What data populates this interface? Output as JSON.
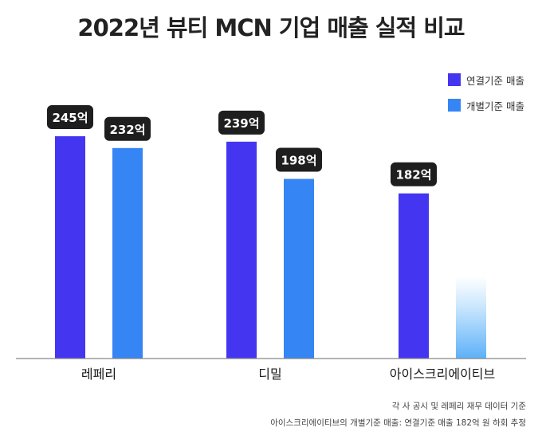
{
  "chart_data": {
    "type": "bar",
    "title": "2022년 뷰티 MCN 기업 매출 실적 비교",
    "categories": [
      "레페리",
      "디밀",
      "아이스크리에이티브"
    ],
    "series": [
      {
        "name": "연결기준 매출",
        "color": "#4436f0",
        "values": [
          245,
          239,
          182
        ],
        "labels": [
          "245억",
          "239억",
          "182억"
        ]
      },
      {
        "name": "개별기준 매출",
        "color": "#3585f4",
        "values": [
          232,
          198,
          null
        ],
        "labels": [
          "232억",
          "198억",
          null
        ]
      }
    ],
    "estimated_bar": {
      "category": "아이스크리에이티브",
      "series": "개별기준 매출",
      "style": "gradient-fade"
    },
    "legend_position": "top-right",
    "grid": false
  },
  "footnotes": [
    "각 사 공시 및 레페리 재무 데이터 기준",
    "아이스크리에이티브의 개별기준 매출: 연결기준 매출 182억 원 하회 추정"
  ]
}
